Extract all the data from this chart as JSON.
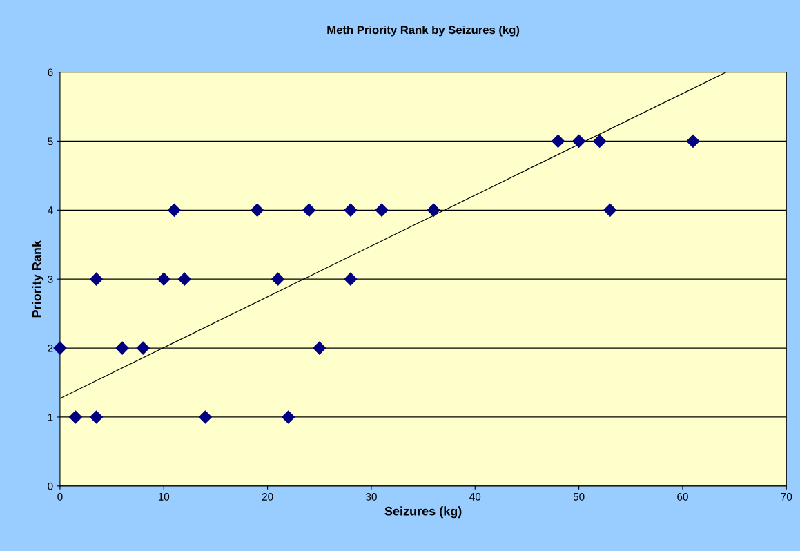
{
  "chart_data": {
    "type": "scatter",
    "title": "Meth Priority Rank by Seizures (kg)",
    "xlabel": "Seizures (kg)",
    "ylabel": "Priority Rank",
    "xlim": [
      0,
      70
    ],
    "xticks": [
      0,
      10,
      20,
      30,
      40,
      50,
      60,
      70
    ],
    "ylim": [
      0,
      6
    ],
    "yticks": [
      0,
      1,
      2,
      3,
      4,
      5,
      6
    ],
    "grid": "y",
    "marker": "diamond",
    "series": [
      {
        "color": "#000080",
        "x": [
          0,
          1.5,
          3.5,
          3.5,
          6,
          8,
          10,
          11,
          12,
          14,
          19,
          21,
          22,
          24,
          25,
          28,
          28,
          31,
          36,
          48,
          50,
          52,
          53,
          61
        ],
        "values": [
          2,
          1,
          1,
          3,
          2,
          2,
          3,
          4,
          3,
          1,
          4,
          3,
          1,
          4,
          2,
          4,
          3,
          4,
          4,
          5,
          5,
          5,
          4,
          5
        ]
      },
      {
        "type": "line",
        "color": "#000000",
        "marker": "none",
        "x": [
          0,
          64.2
        ],
        "values": [
          1.27,
          6
        ]
      }
    ]
  }
}
